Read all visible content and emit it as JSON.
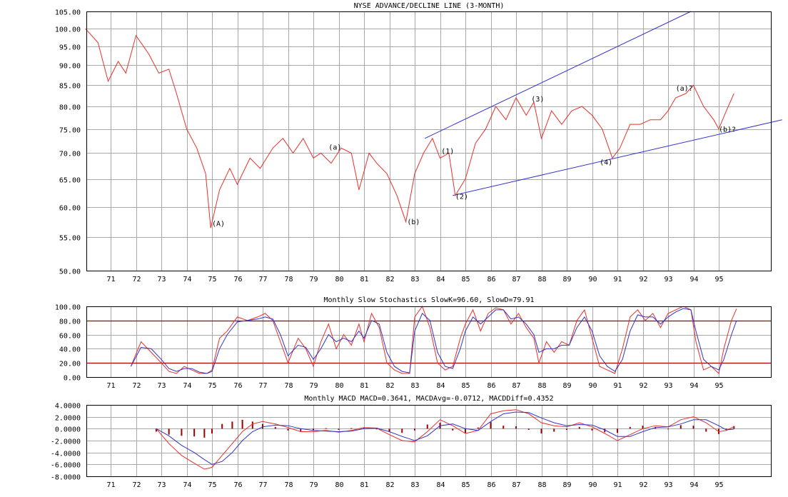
{
  "chart_data": [
    {
      "type": "line",
      "title": "NYSE ADVANCE/DECLINE LINE (3-MONTH)",
      "xlabel": "",
      "ylabel": "",
      "scale": "log",
      "ylim": [
        50,
        105
      ],
      "yticks": [
        "50.00",
        "55.00",
        "60.00",
        "65.00",
        "70.00",
        "75.00",
        "80.00",
        "85.00",
        "90.00",
        "95.00",
        "100.00",
        "105.00"
      ],
      "xticks": [
        "71",
        "72",
        "73",
        "74",
        "75",
        "76",
        "77",
        "78",
        "79",
        "80",
        "81",
        "82",
        "83",
        "84",
        "85",
        "86",
        "87",
        "88",
        "89",
        "90",
        "91",
        "92",
        "93",
        "94",
        "95"
      ],
      "grid": true,
      "series": [
        {
          "color": "#e8302a",
          "x": [
            1970.0,
            1970.5,
            1970.9,
            1971.3,
            1971.6,
            1972.0,
            1972.5,
            1972.9,
            1973.3,
            1973.6,
            1974.0,
            1974.4,
            1974.75,
            1974.95,
            1975.3,
            1975.7,
            1976.0,
            1976.5,
            1976.9,
            1977.4,
            1977.8,
            1978.2,
            1978.6,
            1979.0,
            1979.3,
            1979.7,
            1980.1,
            1980.5,
            1980.8,
            1981.2,
            1981.5,
            1981.9,
            1982.3,
            1982.65,
            1983.0,
            1983.35,
            1983.7,
            1984.0,
            1984.35,
            1984.6,
            1985.0,
            1985.4,
            1985.8,
            1986.2,
            1986.6,
            1987.0,
            1987.4,
            1987.7,
            1988.0,
            1988.4,
            1988.8,
            1989.2,
            1989.6,
            1990.0,
            1990.4,
            1990.8,
            1991.1,
            1991.5,
            1991.9,
            1992.3,
            1992.7,
            1993.0,
            1993.3,
            1993.7,
            1994.0,
            1994.4,
            1994.8,
            1995.0,
            1995.3,
            1995.6
          ],
          "y": [
            100,
            96,
            86,
            91,
            88,
            98,
            93,
            88,
            89,
            83,
            75,
            71,
            66,
            56.5,
            63,
            67,
            64,
            69,
            67,
            71,
            73,
            70,
            73,
            69,
            70,
            68,
            71,
            70,
            63,
            70,
            68,
            66,
            62,
            57.5,
            66,
            70,
            73,
            69,
            70,
            62,
            65,
            72,
            75,
            80,
            77,
            82,
            78,
            81,
            73,
            79,
            76,
            79,
            80,
            78,
            75,
            69,
            71,
            76,
            76,
            77,
            77,
            79,
            82,
            83,
            85,
            80,
            77,
            75,
            79,
            83
          ]
        }
      ],
      "annotations": [
        "(A)",
        "(a)",
        "(b)",
        "(1)",
        "(2)",
        "(3)",
        "(4)",
        "(a)?",
        "(b)?"
      ],
      "trendlines": [
        {
          "color": "#3333cc",
          "x": [
            1983.4,
            1993.9
          ],
          "y": [
            73,
            105
          ]
        },
        {
          "color": "#3333cc",
          "x": [
            1984.5,
            1997.5
          ],
          "y": [
            62,
            77
          ]
        }
      ]
    },
    {
      "type": "line",
      "title": "Monthly Slow Stochastics SlowK=96.60, SlowD=79.91",
      "xlabel": "",
      "ylabel": "",
      "ylim": [
        0,
        100
      ],
      "yticks": [
        "0.00",
        "20.00",
        "40.00",
        "60.00",
        "80.00",
        "100.00"
      ],
      "xticks": [
        "71",
        "72",
        "73",
        "74",
        "75",
        "76",
        "77",
        "78",
        "79",
        "80",
        "81",
        "82",
        "83",
        "84",
        "85",
        "86",
        "87",
        "88",
        "89",
        "90",
        "91",
        "92",
        "93",
        "94",
        "95"
      ],
      "grid": true,
      "reference_lines": [
        {
          "y": 80,
          "color": "#a00000"
        },
        {
          "y": 20,
          "color": "#a00000"
        }
      ],
      "series": [
        {
          "color": "#e8302a",
          "x": [
            1971.8,
            1972.2,
            1972.6,
            1973.0,
            1973.3,
            1973.6,
            1973.9,
            1974.2,
            1974.5,
            1974.8,
            1975.0,
            1975.3,
            1975.6,
            1976.0,
            1976.4,
            1976.8,
            1977.1,
            1977.4,
            1977.7,
            1978.0,
            1978.4,
            1978.7,
            1979.0,
            1979.3,
            1979.6,
            1979.9,
            1980.2,
            1980.5,
            1980.8,
            1981.0,
            1981.3,
            1981.6,
            1981.9,
            1982.2,
            1982.5,
            1982.8,
            1983.0,
            1983.3,
            1983.6,
            1983.9,
            1984.2,
            1984.5,
            1984.8,
            1985.0,
            1985.3,
            1985.6,
            1985.9,
            1986.2,
            1986.5,
            1986.8,
            1987.1,
            1987.4,
            1987.7,
            1987.9,
            1988.2,
            1988.5,
            1988.8,
            1989.1,
            1989.4,
            1989.7,
            1990.0,
            1990.3,
            1990.6,
            1990.9,
            1991.2,
            1991.5,
            1991.8,
            1992.1,
            1992.4,
            1992.7,
            1993.0,
            1993.3,
            1993.6,
            1993.9,
            1994.1,
            1994.4,
            1994.7,
            1995.0,
            1995.2,
            1995.5,
            1995.7
          ],
          "y": [
            15,
            50,
            35,
            20,
            8,
            5,
            15,
            10,
            5,
            5,
            10,
            55,
            65,
            85,
            80,
            85,
            90,
            80,
            50,
            20,
            55,
            40,
            15,
            50,
            75,
            40,
            60,
            45,
            75,
            50,
            90,
            70,
            20,
            10,
            5,
            5,
            85,
            100,
            70,
            20,
            10,
            15,
            55,
            75,
            95,
            65,
            90,
            98,
            95,
            75,
            90,
            70,
            55,
            20,
            50,
            35,
            50,
            45,
            80,
            95,
            55,
            15,
            10,
            5,
            40,
            85,
            95,
            80,
            90,
            70,
            90,
            95,
            100,
            95,
            50,
            10,
            15,
            5,
            40,
            80,
            96.6
          ]
        },
        {
          "color": "#3333cc",
          "x": [
            1971.8,
            1972.2,
            1972.6,
            1973.0,
            1973.3,
            1973.6,
            1973.9,
            1974.2,
            1974.5,
            1974.8,
            1975.0,
            1975.3,
            1975.6,
            1976.0,
            1976.4,
            1976.8,
            1977.1,
            1977.4,
            1977.7,
            1978.0,
            1978.4,
            1978.7,
            1979.0,
            1979.3,
            1979.6,
            1979.9,
            1980.2,
            1980.5,
            1980.8,
            1981.0,
            1981.3,
            1981.6,
            1981.9,
            1982.2,
            1982.5,
            1982.8,
            1983.0,
            1983.3,
            1983.6,
            1983.9,
            1984.2,
            1984.5,
            1984.8,
            1985.0,
            1985.3,
            1985.6,
            1985.9,
            1986.2,
            1986.5,
            1986.8,
            1987.1,
            1987.4,
            1987.7,
            1987.9,
            1988.2,
            1988.5,
            1988.8,
            1989.1,
            1989.4,
            1989.7,
            1990.0,
            1990.3,
            1990.6,
            1990.9,
            1991.2,
            1991.5,
            1991.8,
            1992.1,
            1992.4,
            1992.7,
            1993.0,
            1993.3,
            1993.6,
            1993.9,
            1994.1,
            1994.4,
            1994.7,
            1995.0,
            1995.2,
            1995.5,
            1995.7
          ],
          "y": [
            15,
            42,
            40,
            25,
            12,
            8,
            12,
            12,
            7,
            5,
            8,
            40,
            60,
            78,
            80,
            82,
            85,
            82,
            60,
            30,
            45,
            42,
            25,
            40,
            60,
            50,
            55,
            50,
            65,
            55,
            80,
            75,
            35,
            15,
            8,
            6,
            65,
            90,
            80,
            35,
            15,
            12,
            40,
            65,
            85,
            75,
            85,
            95,
            95,
            82,
            85,
            75,
            60,
            35,
            40,
            40,
            45,
            45,
            70,
            85,
            65,
            30,
            15,
            8,
            25,
            65,
            88,
            85,
            85,
            75,
            85,
            92,
            97,
            95,
            65,
            25,
            15,
            10,
            25,
            60,
            79.91
          ]
        }
      ]
    },
    {
      "type": "line",
      "title": "Monthly MACD MACD=0.3641, MACDAvg=-0.0712, MACDDiff=0.4352",
      "xlabel": "",
      "ylabel": "",
      "ylim": [
        -8,
        4
      ],
      "yticks": [
        "-8.0000",
        "-6.0000",
        "-4.0000",
        "-2.0000",
        "0.0000",
        "2.0000",
        "4.0000"
      ],
      "xticks": [
        "71",
        "72",
        "73",
        "74",
        "75",
        "76",
        "77",
        "78",
        "79",
        "80",
        "81",
        "82",
        "83",
        "84",
        "85",
        "86",
        "87",
        "88",
        "89",
        "90",
        "91",
        "92",
        "93",
        "94",
        "95"
      ],
      "grid": true,
      "series": [
        {
          "color": "#e8302a",
          "x": [
            1972.8,
            1973.3,
            1973.8,
            1974.3,
            1974.7,
            1975.0,
            1975.4,
            1975.8,
            1976.2,
            1976.6,
            1977.0,
            1977.5,
            1978.0,
            1978.5,
            1979.0,
            1979.5,
            1980.0,
            1980.5,
            1981.0,
            1981.5,
            1982.0,
            1982.5,
            1983.0,
            1983.5,
            1984.0,
            1984.5,
            1985.0,
            1985.5,
            1986.0,
            1986.5,
            1987.0,
            1987.5,
            1988.0,
            1988.5,
            1989.0,
            1989.5,
            1990.0,
            1990.5,
            1991.0,
            1991.5,
            1992.0,
            1992.5,
            1993.0,
            1993.5,
            1994.0,
            1994.5,
            1995.0,
            1995.3,
            1995.6
          ],
          "y": [
            0,
            -2.5,
            -4.5,
            -5.8,
            -6.8,
            -6.5,
            -4.5,
            -2.5,
            -0.5,
            0.8,
            1.2,
            0.8,
            0.2,
            -0.5,
            -0.5,
            -0.3,
            -0.6,
            -0.3,
            0.2,
            0.1,
            -1.0,
            -2.0,
            -2.2,
            -0.5,
            1.5,
            0.5,
            -0.8,
            -0.3,
            2.5,
            3.0,
            3.2,
            2.5,
            1.0,
            0.5,
            0.3,
            1.0,
            0.3,
            -0.8,
            -2.0,
            -1.0,
            0.0,
            0.5,
            0.3,
            1.5,
            2.0,
            1.0,
            -0.5,
            -0.3,
            0.36
          ]
        },
        {
          "color": "#3333cc",
          "x": [
            1972.8,
            1973.3,
            1973.8,
            1974.3,
            1974.7,
            1975.0,
            1975.4,
            1975.8,
            1976.2,
            1976.6,
            1977.0,
            1977.5,
            1978.0,
            1978.5,
            1979.0,
            1979.5,
            1980.0,
            1980.5,
            1981.0,
            1981.5,
            1982.0,
            1982.5,
            1983.0,
            1983.5,
            1984.0,
            1984.5,
            1985.0,
            1985.5,
            1986.0,
            1986.5,
            1987.0,
            1987.5,
            1988.0,
            1988.5,
            1989.0,
            1989.5,
            1990.0,
            1990.5,
            1991.0,
            1991.5,
            1992.0,
            1992.5,
            1993.0,
            1993.5,
            1994.0,
            1994.5,
            1995.0,
            1995.3,
            1995.6
          ],
          "y": [
            0,
            -1.2,
            -2.8,
            -4.0,
            -5.2,
            -6.0,
            -5.5,
            -4.0,
            -2.0,
            -0.5,
            0.3,
            0.6,
            0.5,
            0.0,
            -0.3,
            -0.4,
            -0.5,
            -0.4,
            0.0,
            0.1,
            -0.5,
            -1.3,
            -2.0,
            -1.2,
            0.5,
            0.8,
            0.0,
            -0.3,
            1.2,
            2.5,
            2.8,
            2.7,
            1.8,
            1.0,
            0.5,
            0.7,
            0.6,
            -0.2,
            -1.3,
            -1.3,
            -0.5,
            0.2,
            0.3,
            0.8,
            1.5,
            1.5,
            0.5,
            -0.2,
            -0.07
          ]
        }
      ],
      "histogram": {
        "color": "#a00000",
        "x": [
          1972.8,
          1973.3,
          1973.8,
          1974.3,
          1974.7,
          1975.0,
          1975.4,
          1975.8,
          1976.2,
          1976.6,
          1977.0,
          1977.5,
          1978.0,
          1978.5,
          1979.0,
          1979.5,
          1980.0,
          1980.5,
          1981.0,
          1981.5,
          1982.0,
          1982.5,
          1983.0,
          1983.5,
          1984.0,
          1984.5,
          1985.0,
          1985.5,
          1986.0,
          1986.5,
          1987.0,
          1987.5,
          1988.0,
          1988.5,
          1989.0,
          1989.5,
          1990.0,
          1990.5,
          1991.0,
          1991.5,
          1992.0,
          1992.5,
          1993.0,
          1993.5,
          1994.0,
          1994.5,
          1995.0,
          1995.3,
          1995.6
        ],
        "values": [
          -0.5,
          -1.0,
          -1.2,
          -1.3,
          -1.5,
          -0.8,
          0.8,
          1.2,
          1.5,
          1.2,
          0.8,
          0.3,
          -0.3,
          -0.5,
          -0.3,
          0.1,
          -0.2,
          0.1,
          0.2,
          0.0,
          -0.5,
          -0.7,
          -0.3,
          0.7,
          1.0,
          -0.3,
          -0.7,
          0.2,
          1.1,
          0.5,
          0.4,
          -0.2,
          -0.8,
          -0.5,
          -0.2,
          0.3,
          -0.3,
          -0.6,
          -0.7,
          0.3,
          0.5,
          0.3,
          0.0,
          0.6,
          0.5,
          -0.5,
          -0.9,
          -0.1,
          0.44
        ]
      }
    }
  ]
}
